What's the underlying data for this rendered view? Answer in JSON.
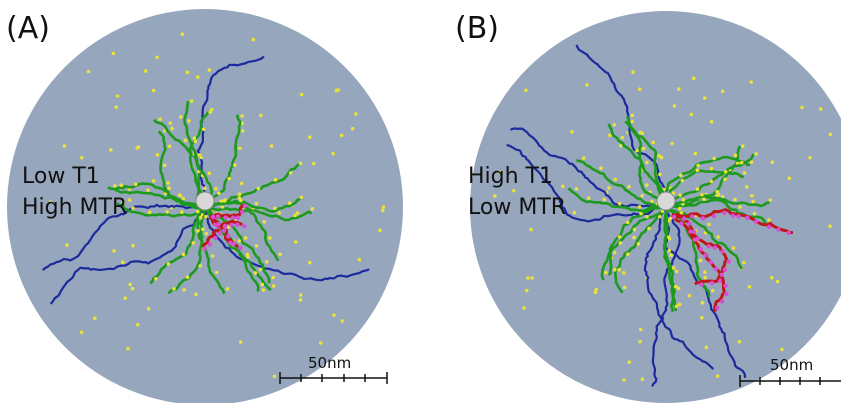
{
  "panels": [
    {
      "label": "(A)",
      "annotation": [
        "Low T1",
        "High MTR"
      ],
      "scale_bar": "50nm"
    },
    {
      "label": "(B)",
      "annotation": [
        "High T1",
        "Low MTR"
      ],
      "scale_bar": "50nm"
    }
  ]
}
